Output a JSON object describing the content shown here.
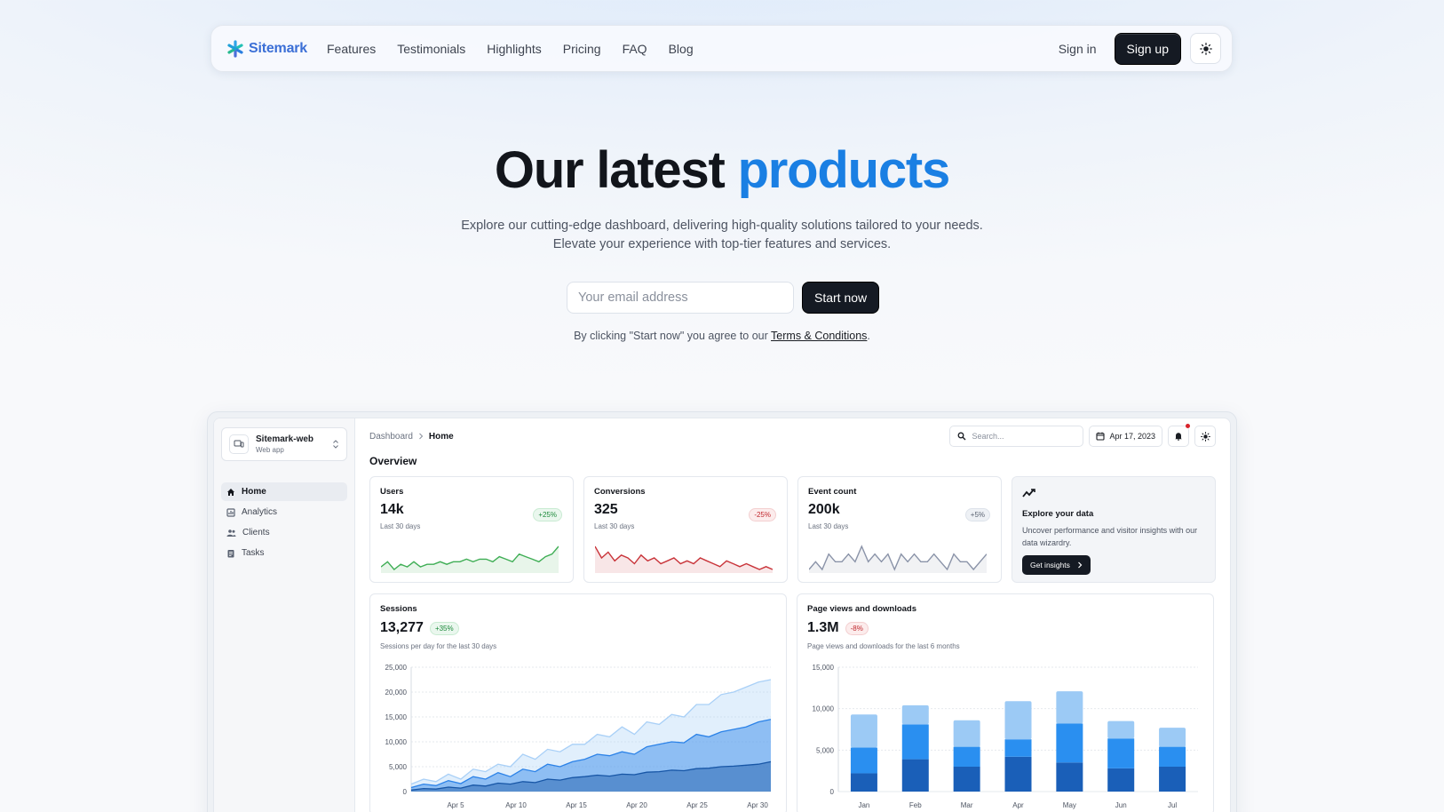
{
  "nav": {
    "logo": "Sitemark",
    "links": [
      "Features",
      "Testimonials",
      "Highlights",
      "Pricing",
      "FAQ",
      "Blog"
    ],
    "signin": "Sign in",
    "signup": "Sign up",
    "theme_icon": "sun-icon"
  },
  "hero": {
    "title_main": "Our latest",
    "title_accent": "products",
    "subtitle_line1": "Explore our cutting-edge dashboard, delivering high-quality solutions tailored to your needs.",
    "subtitle_line2": "Elevate your experience with top-tier features and services.",
    "email_placeholder": "Your email address",
    "start_button": "Start now",
    "terms_prefix": "By clicking \"Start now\" you agree to our",
    "terms_link": "Terms & Conditions",
    "terms_suffix": ".",
    "accent_color": "#1a7fe3"
  },
  "dashboard": {
    "site_name": "Sitemark-web",
    "site_type": "Web app",
    "sidebar": [
      {
        "label": "Home",
        "icon": "home-icon",
        "active": true
      },
      {
        "label": "Analytics",
        "icon": "analytics-icon",
        "active": false
      },
      {
        "label": "Clients",
        "icon": "people-icon",
        "active": false
      },
      {
        "label": "Tasks",
        "icon": "tasks-icon",
        "active": false
      }
    ],
    "breadcrumb_root": "Dashboard",
    "breadcrumb_current": "Home",
    "search_placeholder": "Search...",
    "date": "Apr 17, 2023",
    "overview": "Overview",
    "stats": [
      {
        "title": "Users",
        "value": "14k",
        "sub": "Last 30 days",
        "badge": "+25%",
        "trend": "up",
        "color": "#3fae55",
        "spark": [
          4,
          6,
          3,
          5,
          4,
          6,
          4,
          5,
          5,
          6,
          5,
          6,
          6,
          7,
          6,
          7,
          7,
          6,
          8,
          7,
          6,
          9,
          8,
          7,
          6,
          8,
          9,
          12
        ]
      },
      {
        "title": "Conversions",
        "value": "325",
        "sub": "Last 30 days",
        "badge": "-25%",
        "trend": "down",
        "color": "#c9343a",
        "spark": [
          12,
          8,
          10,
          7,
          9,
          8,
          6,
          9,
          7,
          8,
          6,
          7,
          8,
          6,
          7,
          6,
          8,
          7,
          6,
          5,
          7,
          6,
          5,
          6,
          5,
          4,
          5,
          4
        ]
      },
      {
        "title": "Event count",
        "value": "200k",
        "sub": "Last 30 days",
        "badge": "+5%",
        "trend": "neutral",
        "color": "#8a93a8",
        "spark": [
          7,
          8,
          7,
          9,
          8,
          8,
          9,
          8,
          10,
          8,
          9,
          8,
          9,
          7,
          9,
          8,
          9,
          8,
          8,
          9,
          8,
          7,
          9,
          8,
          8,
          7,
          8,
          9
        ]
      }
    ],
    "explore": {
      "icon": "insights-icon",
      "title": "Explore your data",
      "text": "Uncover performance and visitor insights with our data wizardry.",
      "button": "Get insights"
    },
    "sessions": {
      "title": "Sessions",
      "value": "13,277",
      "badge": "+35%",
      "sub": "Sessions per day for the last 30 days"
    },
    "pageviews": {
      "title": "Page views and downloads",
      "value": "1.3M",
      "badge": "-8%",
      "sub": "Page views and downloads for the last 6 months"
    }
  },
  "chart_data": [
    {
      "type": "area",
      "title": "Sessions",
      "ylim": [
        0,
        25000
      ],
      "yticks": [
        0,
        5000,
        10000,
        15000,
        20000,
        25000
      ],
      "ytick_labels": [
        "0",
        "5,000",
        "10,000",
        "15,000",
        "20,000",
        "25,000"
      ],
      "x_tick_labels": [
        "Apr 5",
        "Apr 10",
        "Apr 15",
        "Apr 20",
        "Apr 25",
        "Apr 30"
      ],
      "grid": true,
      "series": [
        {
          "values": [
            1500,
            2500,
            2000,
            3500,
            2500,
            4500,
            4000,
            5500,
            5000,
            7500,
            6500,
            8500,
            8000,
            9500,
            9500,
            11500,
            11000,
            13000,
            11500,
            14000,
            13500,
            15500,
            15000,
            17500,
            17500,
            19500,
            20000,
            21000,
            22000,
            22500
          ],
          "color": "#a9d0f7"
        },
        {
          "values": [
            800,
            1500,
            1200,
            2200,
            1600,
            3000,
            2500,
            3800,
            3000,
            4500,
            4000,
            5500,
            5000,
            6000,
            6500,
            7500,
            7200,
            8000,
            7500,
            9000,
            9500,
            10000,
            9800,
            11500,
            11000,
            12000,
            12500,
            13000,
            14000,
            14500
          ],
          "color": "#2b82e8"
        },
        {
          "values": [
            300,
            600,
            500,
            900,
            700,
            1300,
            1100,
            1700,
            1500,
            2000,
            1800,
            2500,
            2300,
            2800,
            3000,
            3300,
            3100,
            3500,
            3400,
            3900,
            4000,
            4300,
            4200,
            4600,
            4700,
            5000,
            5100,
            5300,
            5500,
            6000
          ],
          "color": "#1756a6"
        }
      ]
    },
    {
      "type": "bar",
      "title": "Page views and downloads",
      "ylim": [
        0,
        15000
      ],
      "yticks": [
        0,
        5000,
        10000,
        15000
      ],
      "ytick_labels": [
        "0",
        "5,000",
        "10,000",
        "15,000"
      ],
      "categories": [
        "Jan",
        "Feb",
        "Mar",
        "Apr",
        "May",
        "Jun",
        "Jul"
      ],
      "stacked": true,
      "grid": true,
      "series": [
        {
          "values": [
            2200,
            3900,
            3000,
            4200,
            3500,
            2800,
            3000
          ],
          "color": "#1a5fb8"
        },
        {
          "values": [
            3100,
            4200,
            2400,
            2100,
            4700,
            3600,
            2400
          ],
          "color": "#2a8ff0"
        },
        {
          "values": [
            4000,
            2300,
            3200,
            4600,
            3900,
            2100,
            2300
          ],
          "color": "#9ccaf5"
        }
      ]
    }
  ]
}
